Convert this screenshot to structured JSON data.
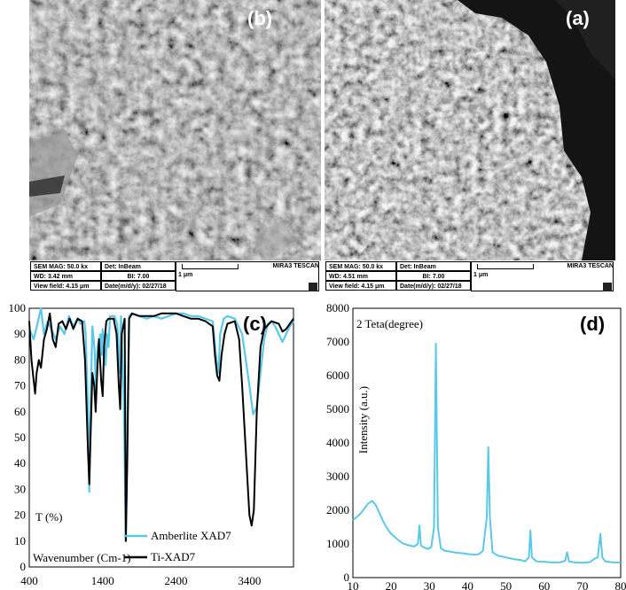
{
  "sem_panels": [
    {
      "label": "(b)",
      "sem_mag": "SEM MAG: 50.0 kx",
      "det": "Det: InBeam",
      "wd": "WD: 3.42 mm",
      "bi": "BI: 7.00",
      "view_field": "View field: 4.15 μm",
      "date": "Date(m/d/y): 02/27/18",
      "scale": "1 μm",
      "brand": "MIRA3 TESCAN"
    },
    {
      "label": "(a)",
      "sem_mag": "SEM MAG: 50.0 kx",
      "det": "Det: InBeam",
      "wd": "WD: 4.51 mm",
      "bi": "BI: 7.00",
      "view_field": "View field: 4.15 μm",
      "date": "Date(m/d/y): 02/27/18",
      "scale": "1 μm",
      "brand": "MIRA3 TESCAN"
    }
  ],
  "chart_data": [
    {
      "type": "line",
      "panel_label": "(c)",
      "ylabel": "T (%)",
      "xlabel": "Wavenumber (Cm-1)",
      "xlim": [
        400,
        4000
      ],
      "ylim": [
        0,
        100
      ],
      "x_ticks": [
        400,
        1400,
        2400,
        3400
      ],
      "y_ticks": [
        0,
        10,
        20,
        30,
        40,
        50,
        60,
        70,
        80,
        90,
        100
      ],
      "legend_position": "bottom-center",
      "colors": {
        "amberlite": "#5bc8e8",
        "ti": "#000000"
      },
      "series": [
        {
          "name": "Amberlite XAD7",
          "points": [
            [
              400,
              92
            ],
            [
              460,
              88
            ],
            [
              520,
              95
            ],
            [
              560,
              100
            ],
            [
              600,
              90
            ],
            [
              650,
              95
            ],
            [
              700,
              92
            ],
            [
              760,
              88
            ],
            [
              820,
              93
            ],
            [
              880,
              90
            ],
            [
              940,
              97
            ],
            [
              1000,
              93
            ],
            [
              1060,
              96
            ],
            [
              1100,
              94
            ],
            [
              1150,
              95
            ],
            [
              1170,
              90
            ],
            [
              1200,
              60
            ],
            [
              1218,
              29
            ],
            [
              1232,
              60
            ],
            [
              1260,
              93
            ],
            [
              1290,
              84
            ],
            [
              1310,
              68
            ],
            [
              1330,
              85
            ],
            [
              1370,
              90
            ],
            [
              1390,
              82
            ],
            [
              1400,
              92
            ],
            [
              1440,
              78
            ],
            [
              1460,
              90
            ],
            [
              1480,
              85
            ],
            [
              1500,
              97
            ],
            [
              1560,
              97
            ],
            [
              1600,
              94
            ],
            [
              1630,
              75
            ],
            [
              1650,
              97
            ],
            [
              1690,
              60
            ],
            [
              1715,
              10
            ],
            [
              1740,
              60
            ],
            [
              1760,
              97
            ],
            [
              1800,
              98
            ],
            [
              1900,
              97
            ],
            [
              2000,
              96
            ],
            [
              2100,
              97
            ],
            [
              2200,
              96
            ],
            [
              2300,
              97
            ],
            [
              2400,
              98
            ],
            [
              2500,
              98
            ],
            [
              2600,
              97
            ],
            [
              2700,
              97
            ],
            [
              2800,
              96
            ],
            [
              2900,
              95
            ],
            [
              2950,
              80
            ],
            [
              2980,
              75
            ],
            [
              3000,
              90
            ],
            [
              3050,
              96
            ],
            [
              3100,
              97
            ],
            [
              3200,
              96
            ],
            [
              3300,
              90
            ],
            [
              3400,
              70
            ],
            [
              3450,
              59
            ],
            [
              3500,
              62
            ],
            [
              3550,
              75
            ],
            [
              3600,
              88
            ],
            [
              3650,
              94
            ],
            [
              3700,
              95
            ],
            [
              3750,
              93
            ],
            [
              3800,
              90
            ],
            [
              3850,
              87
            ],
            [
              3900,
              90
            ],
            [
              3950,
              93
            ],
            [
              4000,
              95
            ]
          ]
        },
        {
          "name": "Ti-XAD7",
          "points": [
            [
              400,
              95
            ],
            [
              430,
              80
            ],
            [
              460,
              72
            ],
            [
              480,
              67
            ],
            [
              500,
              75
            ],
            [
              530,
              80
            ],
            [
              560,
              77
            ],
            [
              600,
              88
            ],
            [
              640,
              92
            ],
            [
              680,
              98
            ],
            [
              720,
              88
            ],
            [
              760,
              85
            ],
            [
              800,
              94
            ],
            [
              850,
              95
            ],
            [
              900,
              92
            ],
            [
              950,
              96
            ],
            [
              1000,
              92
            ],
            [
              1060,
              96
            ],
            [
              1120,
              95
            ],
            [
              1160,
              80
            ],
            [
              1200,
              45
            ],
            [
              1218,
              32
            ],
            [
              1235,
              50
            ],
            [
              1260,
              75
            ],
            [
              1285,
              70
            ],
            [
              1305,
              60
            ],
            [
              1325,
              75
            ],
            [
              1350,
              88
            ],
            [
              1380,
              72
            ],
            [
              1400,
              66
            ],
            [
              1420,
              85
            ],
            [
              1450,
              95
            ],
            [
              1480,
              96
            ],
            [
              1550,
              96
            ],
            [
              1590,
              90
            ],
            [
              1620,
              70
            ],
            [
              1640,
              61
            ],
            [
              1660,
              90
            ],
            [
              1700,
              96
            ],
            [
              1715,
              10
            ],
            [
              1735,
              40
            ],
            [
              1760,
              96
            ],
            [
              1800,
              98
            ],
            [
              1900,
              97
            ],
            [
              2000,
              97
            ],
            [
              2100,
              97
            ],
            [
              2200,
              98
            ],
            [
              2300,
              98
            ],
            [
              2400,
              98
            ],
            [
              2500,
              97
            ],
            [
              2600,
              96
            ],
            [
              2700,
              96
            ],
            [
              2800,
              95
            ],
            [
              2900,
              93
            ],
            [
              2930,
              82
            ],
            [
              2960,
              74
            ],
            [
              2990,
              72
            ],
            [
              3020,
              82
            ],
            [
              3060,
              90
            ],
            [
              3100,
              94
            ],
            [
              3200,
              95
            ],
            [
              3260,
              88
            ],
            [
              3300,
              70
            ],
            [
              3350,
              45
            ],
            [
              3400,
              20
            ],
            [
              3430,
              16
            ],
            [
              3460,
              22
            ],
            [
              3500,
              60
            ],
            [
              3550,
              85
            ],
            [
              3600,
              92
            ],
            [
              3700,
              95
            ],
            [
              3800,
              94
            ],
            [
              3850,
              91
            ],
            [
              3900,
              92
            ],
            [
              3950,
              94
            ],
            [
              4000,
              96
            ]
          ]
        }
      ]
    },
    {
      "type": "line",
      "panel_label": "(d)",
      "title": "2 Teta(degree)",
      "ylabel": "Intensity (a.u.)",
      "xlabel": "",
      "xlim": [
        10,
        80
      ],
      "ylim": [
        0,
        8000
      ],
      "x_ticks": [
        10,
        20,
        30,
        40,
        50,
        60,
        70,
        80
      ],
      "y_ticks": [
        0,
        1000,
        2000,
        3000,
        4000,
        5000,
        6000,
        7000,
        8000
      ],
      "color": "#5bc8e8",
      "series": [
        {
          "name": "",
          "points": [
            [
              10,
              1700
            ],
            [
              11,
              1800
            ],
            [
              12,
              1900
            ],
            [
              13,
              2050
            ],
            [
              14,
              2200
            ],
            [
              15,
              2280
            ],
            [
              16,
              2150
            ],
            [
              17,
              1900
            ],
            [
              18,
              1650
            ],
            [
              19,
              1450
            ],
            [
              20,
              1300
            ],
            [
              21,
              1200
            ],
            [
              22,
              1100
            ],
            [
              23,
              1020
            ],
            [
              24,
              980
            ],
            [
              25,
              950
            ],
            [
              26,
              920
            ],
            [
              27,
              1000
            ],
            [
              27.4,
              1550
            ],
            [
              27.8,
              950
            ],
            [
              28.5,
              900
            ],
            [
              29.5,
              850
            ],
            [
              30.5,
              900
            ],
            [
              31.2,
              1500
            ],
            [
              31.7,
              6950
            ],
            [
              32.2,
              1500
            ],
            [
              33,
              870
            ],
            [
              34,
              800
            ],
            [
              35,
              780
            ],
            [
              36,
              760
            ],
            [
              37,
              740
            ],
            [
              38,
              730
            ],
            [
              39,
              720
            ],
            [
              40,
              700
            ],
            [
              41,
              690
            ],
            [
              42,
              680
            ],
            [
              43,
              700
            ],
            [
              44,
              800
            ],
            [
              45,
              1800
            ],
            [
              45.4,
              3880
            ],
            [
              45.8,
              1800
            ],
            [
              46.5,
              750
            ],
            [
              48,
              650
            ],
            [
              50,
              600
            ],
            [
              52,
              550
            ],
            [
              54,
              520
            ],
            [
              55,
              480
            ],
            [
              56,
              600
            ],
            [
              56.4,
              1400
            ],
            [
              56.8,
              600
            ],
            [
              58,
              480
            ],
            [
              60,
              470
            ],
            [
              62,
              450
            ],
            [
              64,
              450
            ],
            [
              65.5,
              500
            ],
            [
              66,
              750
            ],
            [
              66.5,
              480
            ],
            [
              68,
              450
            ],
            [
              70,
              440
            ],
            [
              72,
              460
            ],
            [
              73,
              550
            ],
            [
              74,
              600
            ],
            [
              74.7,
              1300
            ],
            [
              75.2,
              600
            ],
            [
              76,
              480
            ],
            [
              78,
              450
            ],
            [
              80,
              450
            ]
          ]
        }
      ]
    }
  ]
}
